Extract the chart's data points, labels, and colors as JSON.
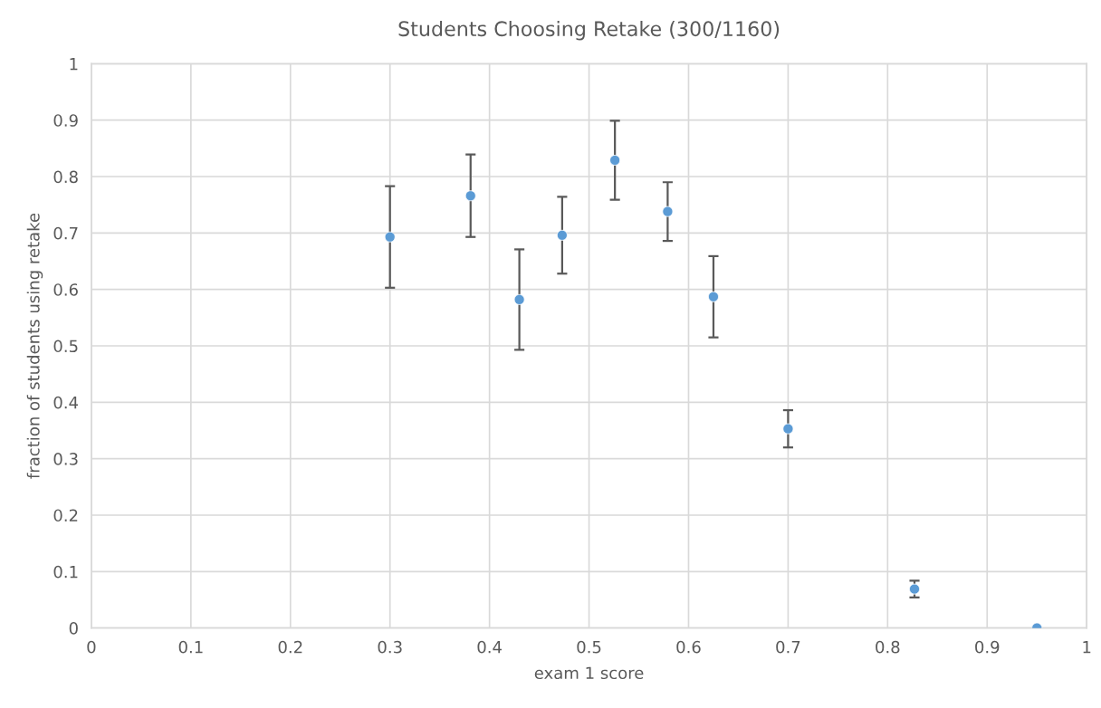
{
  "chart_data": {
    "type": "scatter",
    "title": "Students Choosing Retake (300/1160)",
    "xlabel": "exam 1 score",
    "ylabel": "fraction of students using retake",
    "x": [
      0.3,
      0.381,
      0.43,
      0.473,
      0.526,
      0.579,
      0.625,
      0.7,
      0.827,
      0.95
    ],
    "series": [
      {
        "color": "#5b9bd5",
        "values": [
          0.693,
          0.766,
          0.582,
          0.696,
          0.829,
          0.738,
          0.587,
          0.353,
          0.069,
          0.0
        ],
        "errors": [
          0.09,
          0.073,
          0.089,
          0.068,
          0.07,
          0.052,
          0.072,
          0.033,
          0.015,
          null
        ]
      }
    ],
    "xlim": [
      0,
      1
    ],
    "ylim": [
      0,
      1
    ],
    "xticks": [
      0,
      0.1,
      0.2,
      0.3,
      0.4,
      0.5,
      0.6,
      0.7,
      0.8,
      0.9,
      1
    ],
    "yticks": [
      0,
      0.1,
      0.2,
      0.3,
      0.4,
      0.5,
      0.6,
      0.7,
      0.8,
      0.9,
      1
    ],
    "grid": true,
    "marker": "circle"
  }
}
